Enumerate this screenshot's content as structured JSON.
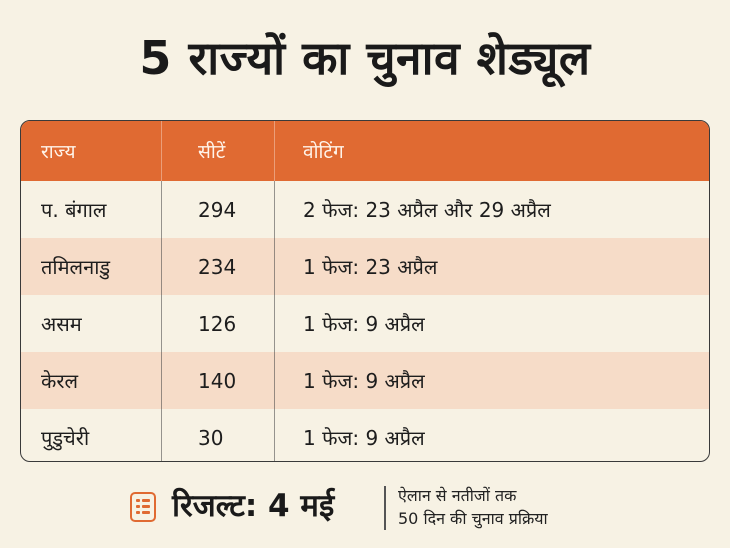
{
  "title": "5 राज्यों का चुनाव शेड्यूल",
  "table": {
    "headers": [
      "राज्य",
      "सीटें",
      "वोटिंग"
    ],
    "rows": [
      [
        "प. बंगाल",
        "294",
        "2 फेज: 23 अप्रैल और 29 अप्रैल"
      ],
      [
        "तमिलनाडु",
        "234",
        "1 फेज: 23 अप्रैल"
      ],
      [
        "असम",
        "126",
        "1 फेज: 9 अप्रैल"
      ],
      [
        "केरल",
        "140",
        "1 फेज: 9 अप्रैल"
      ],
      [
        "पुडुचेरी",
        "30",
        "1 फेज: 9 अप्रैल"
      ]
    ]
  },
  "footer": {
    "result": "रिजल्ट: 4 मई",
    "note_line1": "ऐलान से नतीजों तक",
    "note_line2": "50 दिन की चुनाव प्रक्रिया",
    "icon": "list-icon"
  },
  "colors": {
    "background": "#f7f2e4",
    "header": "#e06a32",
    "alt_row": "#f6dcc8"
  }
}
